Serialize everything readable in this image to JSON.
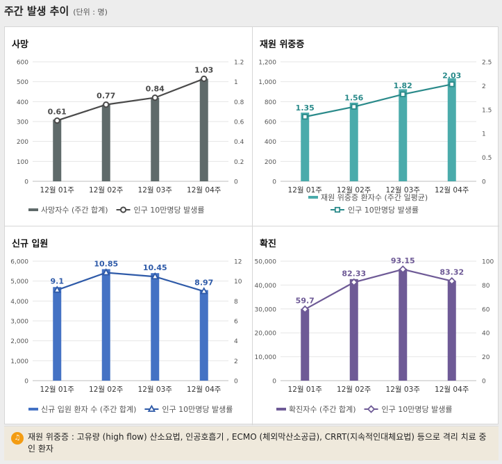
{
  "header": {
    "title": "주간 발생 추이",
    "unit": "(단위 : 명)"
  },
  "note": {
    "icon": "speaker-icon",
    "text": "재원 위중증 : 고유량 (high flow) 산소요법, 인공호흡기 , ECMO (체외막산소공급), CRRT(지속적인대체요법) 등으로 격리 치료 중인 환자"
  },
  "chart_data": [
    {
      "type": "bar",
      "title": "사망",
      "categories": [
        "12월 01주",
        "12월 02주",
        "12월 03주",
        "12월 04주"
      ],
      "bar_color": "#5f6a6a",
      "line_color": "#4a4a4a",
      "marker": "circle",
      "y_left": {
        "min": 0,
        "max": 600,
        "ticks": [
          "0",
          "100",
          "200",
          "300",
          "400",
          "500",
          "600"
        ]
      },
      "y_right": {
        "min": 0,
        "max": 1.2,
        "ticks": [
          "0",
          "0.2",
          "0.4",
          "0.6",
          "0.8",
          "1",
          "1.2"
        ]
      },
      "series": [
        {
          "name": "사망자수 (주간 합계)",
          "kind": "bar",
          "axis": "left",
          "values": [
            310,
            385,
            420,
            515
          ]
        },
        {
          "name": "인구 10만명당 발생률",
          "kind": "line",
          "axis": "right",
          "values": [
            0.61,
            0.77,
            0.84,
            1.03
          ],
          "labels": [
            "0.61",
            "0.77",
            "0.84",
            "1.03"
          ]
        }
      ]
    },
    {
      "type": "bar",
      "title": "재원 위중증",
      "categories": [
        "12월 01주",
        "12월 02주",
        "12월 03주",
        "12월 04주"
      ],
      "bar_color": "#4aabab",
      "line_color": "#2a8a8a",
      "marker": "square",
      "y_left": {
        "min": 0,
        "max": 1200,
        "ticks": [
          "0",
          "200",
          "400",
          "600",
          "800",
          "1,000",
          "1,200"
        ]
      },
      "y_right": {
        "min": 0,
        "max": 2.5,
        "ticks": [
          "0",
          "0.5",
          "1",
          "1.5",
          "2",
          "2.5"
        ]
      },
      "series": [
        {
          "name": "재원 위중증 환자수 (주간 일평균)",
          "kind": "bar",
          "axis": "left",
          "values": [
            690,
            790,
            925,
            1035
          ]
        },
        {
          "name": "인구 10만명당 발생률",
          "kind": "line",
          "axis": "right",
          "values": [
            1.35,
            1.56,
            1.82,
            2.03
          ],
          "labels": [
            "1.35",
            "1.56",
            "1.82",
            "2.03"
          ]
        }
      ]
    },
    {
      "type": "bar",
      "title": "신규 입원",
      "categories": [
        "12월 01주",
        "12월 02주",
        "12월 03주",
        "12월 04주"
      ],
      "bar_color": "#4472c4",
      "line_color": "#2e5aa8",
      "marker": "triangle",
      "y_left": {
        "min": 0,
        "max": 6000,
        "ticks": [
          "0",
          "1,000",
          "2,000",
          "3,000",
          "4,000",
          "5,000",
          "6,000"
        ]
      },
      "y_right": {
        "min": 0,
        "max": 12,
        "ticks": [
          "0",
          "2",
          "4",
          "6",
          "8",
          "10",
          "12"
        ]
      },
      "series": [
        {
          "name": "신규 입원 환자 수 (주간 합계)",
          "kind": "bar",
          "axis": "left",
          "values": [
            4700,
            5600,
            5400,
            4550
          ]
        },
        {
          "name": "인구 10만명당 발생률",
          "kind": "line",
          "axis": "right",
          "values": [
            9.1,
            10.85,
            10.45,
            8.97
          ],
          "labels": [
            "9.1",
            "10.85",
            "10.45",
            "8.97"
          ]
        }
      ]
    },
    {
      "type": "bar",
      "title": "확진",
      "categories": [
        "12월 01주",
        "12월 02주",
        "12월 03주",
        "12월 04주"
      ],
      "bar_color": "#6e5a96",
      "line_color": "#6e5a96",
      "marker": "diamond",
      "y_left": {
        "min": 0,
        "max": 50000,
        "ticks": [
          "0",
          "10,000",
          "20,000",
          "30,000",
          "40,000",
          "50,000"
        ]
      },
      "y_right": {
        "min": 0,
        "max": 100,
        "ticks": [
          "0",
          "20",
          "40",
          "60",
          "80",
          "100"
        ]
      },
      "series": [
        {
          "name": "확진자수 (주간 합계)",
          "kind": "bar",
          "axis": "left",
          "values": [
            30000,
            42500,
            46800,
            41800
          ]
        },
        {
          "name": "인구 10만명당 발생률",
          "kind": "line",
          "axis": "right",
          "values": [
            59.7,
            82.33,
            93.15,
            83.32
          ],
          "labels": [
            "59.7",
            "82.33",
            "93.15",
            "83.32"
          ]
        }
      ]
    }
  ]
}
